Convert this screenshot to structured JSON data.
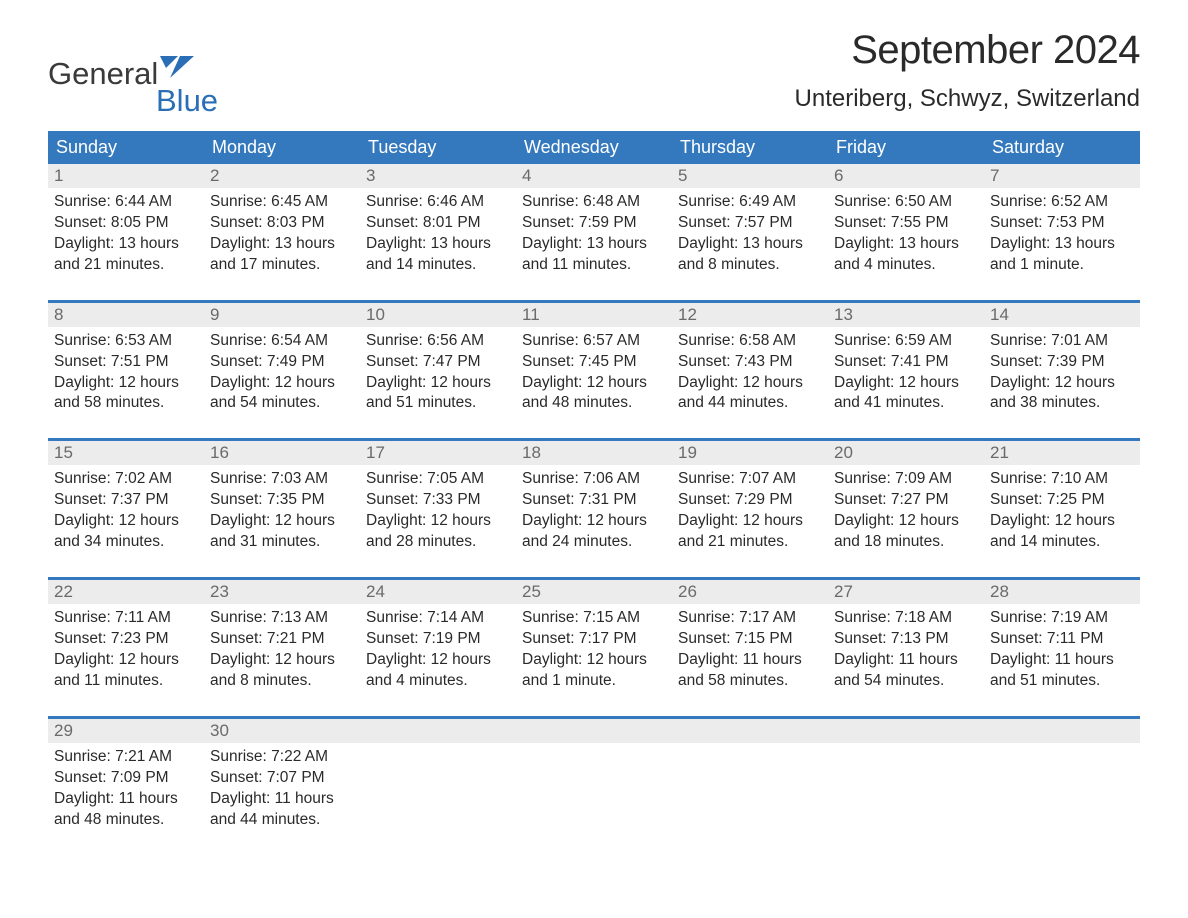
{
  "logo": {
    "word1": "General",
    "word2": "Blue",
    "icon_color": "#2a6fb5",
    "text1_color": "#3a3a3a",
    "text2_color": "#2a6fb5"
  },
  "title": "September 2024",
  "subtitle": "Unteriberg, Schwyz, Switzerland",
  "colors": {
    "header_bg": "#3479be",
    "header_text": "#ffffff",
    "daynum_bg": "#ececec",
    "daynum_text": "#6a6a6a",
    "body_text": "#2a2a2a",
    "background": "#ffffff"
  },
  "fontsizes": {
    "title": 40,
    "subtitle": 24,
    "weekday": 18,
    "daynum": 17,
    "detail": 15.5
  },
  "weekdays": [
    "Sunday",
    "Monday",
    "Tuesday",
    "Wednesday",
    "Thursday",
    "Friday",
    "Saturday"
  ],
  "weeks": [
    [
      {
        "day": "1",
        "sunrise": "Sunrise: 6:44 AM",
        "sunset": "Sunset: 8:05 PM",
        "daylight1": "Daylight: 13 hours",
        "daylight2": "and 21 minutes."
      },
      {
        "day": "2",
        "sunrise": "Sunrise: 6:45 AM",
        "sunset": "Sunset: 8:03 PM",
        "daylight1": "Daylight: 13 hours",
        "daylight2": "and 17 minutes."
      },
      {
        "day": "3",
        "sunrise": "Sunrise: 6:46 AM",
        "sunset": "Sunset: 8:01 PM",
        "daylight1": "Daylight: 13 hours",
        "daylight2": "and 14 minutes."
      },
      {
        "day": "4",
        "sunrise": "Sunrise: 6:48 AM",
        "sunset": "Sunset: 7:59 PM",
        "daylight1": "Daylight: 13 hours",
        "daylight2": "and 11 minutes."
      },
      {
        "day": "5",
        "sunrise": "Sunrise: 6:49 AM",
        "sunset": "Sunset: 7:57 PM",
        "daylight1": "Daylight: 13 hours",
        "daylight2": "and 8 minutes."
      },
      {
        "day": "6",
        "sunrise": "Sunrise: 6:50 AM",
        "sunset": "Sunset: 7:55 PM",
        "daylight1": "Daylight: 13 hours",
        "daylight2": "and 4 minutes."
      },
      {
        "day": "7",
        "sunrise": "Sunrise: 6:52 AM",
        "sunset": "Sunset: 7:53 PM",
        "daylight1": "Daylight: 13 hours",
        "daylight2": "and 1 minute."
      }
    ],
    [
      {
        "day": "8",
        "sunrise": "Sunrise: 6:53 AM",
        "sunset": "Sunset: 7:51 PM",
        "daylight1": "Daylight: 12 hours",
        "daylight2": "and 58 minutes."
      },
      {
        "day": "9",
        "sunrise": "Sunrise: 6:54 AM",
        "sunset": "Sunset: 7:49 PM",
        "daylight1": "Daylight: 12 hours",
        "daylight2": "and 54 minutes."
      },
      {
        "day": "10",
        "sunrise": "Sunrise: 6:56 AM",
        "sunset": "Sunset: 7:47 PM",
        "daylight1": "Daylight: 12 hours",
        "daylight2": "and 51 minutes."
      },
      {
        "day": "11",
        "sunrise": "Sunrise: 6:57 AM",
        "sunset": "Sunset: 7:45 PM",
        "daylight1": "Daylight: 12 hours",
        "daylight2": "and 48 minutes."
      },
      {
        "day": "12",
        "sunrise": "Sunrise: 6:58 AM",
        "sunset": "Sunset: 7:43 PM",
        "daylight1": "Daylight: 12 hours",
        "daylight2": "and 44 minutes."
      },
      {
        "day": "13",
        "sunrise": "Sunrise: 6:59 AM",
        "sunset": "Sunset: 7:41 PM",
        "daylight1": "Daylight: 12 hours",
        "daylight2": "and 41 minutes."
      },
      {
        "day": "14",
        "sunrise": "Sunrise: 7:01 AM",
        "sunset": "Sunset: 7:39 PM",
        "daylight1": "Daylight: 12 hours",
        "daylight2": "and 38 minutes."
      }
    ],
    [
      {
        "day": "15",
        "sunrise": "Sunrise: 7:02 AM",
        "sunset": "Sunset: 7:37 PM",
        "daylight1": "Daylight: 12 hours",
        "daylight2": "and 34 minutes."
      },
      {
        "day": "16",
        "sunrise": "Sunrise: 7:03 AM",
        "sunset": "Sunset: 7:35 PM",
        "daylight1": "Daylight: 12 hours",
        "daylight2": "and 31 minutes."
      },
      {
        "day": "17",
        "sunrise": "Sunrise: 7:05 AM",
        "sunset": "Sunset: 7:33 PM",
        "daylight1": "Daylight: 12 hours",
        "daylight2": "and 28 minutes."
      },
      {
        "day": "18",
        "sunrise": "Sunrise: 7:06 AM",
        "sunset": "Sunset: 7:31 PM",
        "daylight1": "Daylight: 12 hours",
        "daylight2": "and 24 minutes."
      },
      {
        "day": "19",
        "sunrise": "Sunrise: 7:07 AM",
        "sunset": "Sunset: 7:29 PM",
        "daylight1": "Daylight: 12 hours",
        "daylight2": "and 21 minutes."
      },
      {
        "day": "20",
        "sunrise": "Sunrise: 7:09 AM",
        "sunset": "Sunset: 7:27 PM",
        "daylight1": "Daylight: 12 hours",
        "daylight2": "and 18 minutes."
      },
      {
        "day": "21",
        "sunrise": "Sunrise: 7:10 AM",
        "sunset": "Sunset: 7:25 PM",
        "daylight1": "Daylight: 12 hours",
        "daylight2": "and 14 minutes."
      }
    ],
    [
      {
        "day": "22",
        "sunrise": "Sunrise: 7:11 AM",
        "sunset": "Sunset: 7:23 PM",
        "daylight1": "Daylight: 12 hours",
        "daylight2": "and 11 minutes."
      },
      {
        "day": "23",
        "sunrise": "Sunrise: 7:13 AM",
        "sunset": "Sunset: 7:21 PM",
        "daylight1": "Daylight: 12 hours",
        "daylight2": "and 8 minutes."
      },
      {
        "day": "24",
        "sunrise": "Sunrise: 7:14 AM",
        "sunset": "Sunset: 7:19 PM",
        "daylight1": "Daylight: 12 hours",
        "daylight2": "and 4 minutes."
      },
      {
        "day": "25",
        "sunrise": "Sunrise: 7:15 AM",
        "sunset": "Sunset: 7:17 PM",
        "daylight1": "Daylight: 12 hours",
        "daylight2": "and 1 minute."
      },
      {
        "day": "26",
        "sunrise": "Sunrise: 7:17 AM",
        "sunset": "Sunset: 7:15 PM",
        "daylight1": "Daylight: 11 hours",
        "daylight2": "and 58 minutes."
      },
      {
        "day": "27",
        "sunrise": "Sunrise: 7:18 AM",
        "sunset": "Sunset: 7:13 PM",
        "daylight1": "Daylight: 11 hours",
        "daylight2": "and 54 minutes."
      },
      {
        "day": "28",
        "sunrise": "Sunrise: 7:19 AM",
        "sunset": "Sunset: 7:11 PM",
        "daylight1": "Daylight: 11 hours",
        "daylight2": "and 51 minutes."
      }
    ],
    [
      {
        "day": "29",
        "sunrise": "Sunrise: 7:21 AM",
        "sunset": "Sunset: 7:09 PM",
        "daylight1": "Daylight: 11 hours",
        "daylight2": "and 48 minutes."
      },
      {
        "day": "30",
        "sunrise": "Sunrise: 7:22 AM",
        "sunset": "Sunset: 7:07 PM",
        "daylight1": "Daylight: 11 hours",
        "daylight2": "and 44 minutes."
      },
      null,
      null,
      null,
      null,
      null
    ]
  ]
}
